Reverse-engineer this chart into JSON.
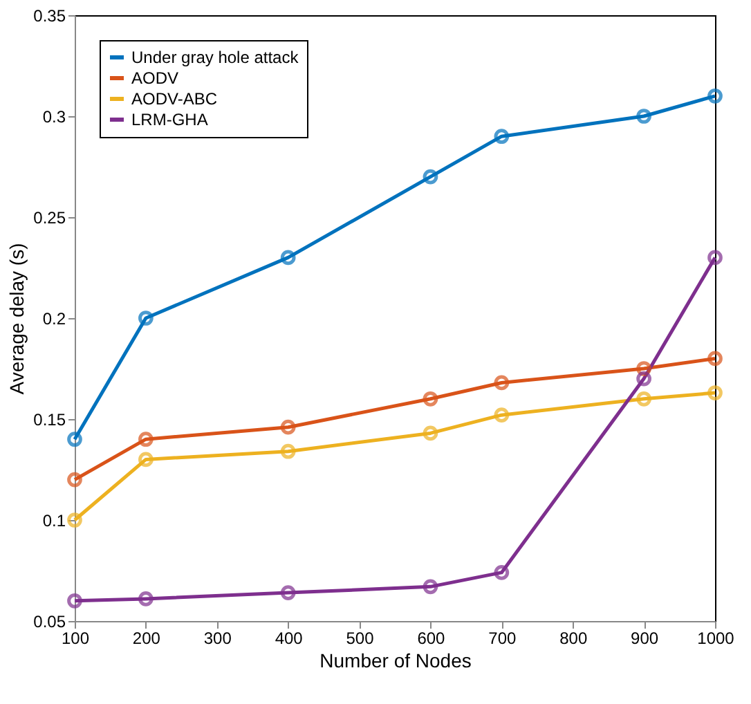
{
  "chart_data": {
    "type": "line",
    "xlabel": "Number of Nodes",
    "ylabel": "Average delay (s)",
    "x": [
      100,
      200,
      400,
      600,
      700,
      900,
      1000
    ],
    "series": [
      {
        "name": "Under gray hole attack",
        "color": "#0072bd",
        "values": [
          0.14,
          0.2,
          0.23,
          0.27,
          0.29,
          0.3,
          0.31
        ]
      },
      {
        "name": "AODV",
        "color": "#d95319",
        "values": [
          0.12,
          0.14,
          0.146,
          0.16,
          0.168,
          0.175,
          0.18
        ]
      },
      {
        "name": "AODV-ABC",
        "color": "#edb120",
        "values": [
          0.1,
          0.13,
          0.134,
          0.143,
          0.152,
          0.16,
          0.163
        ]
      },
      {
        "name": "LRM-GHA",
        "color": "#7e2f8e",
        "values": [
          0.06,
          0.061,
          0.064,
          0.067,
          0.074,
          0.17,
          0.23
        ]
      }
    ],
    "xlim": [
      100,
      1000
    ],
    "xticks": [
      100,
      200,
      300,
      400,
      500,
      600,
      700,
      800,
      900,
      1000
    ],
    "ylim": [
      0.05,
      0.35
    ],
    "yticks": [
      0.05,
      0.1,
      0.15,
      0.2,
      0.25,
      0.3,
      0.35
    ],
    "grid": false,
    "legend": "top left",
    "marker": "circle",
    "line_style": "solid"
  }
}
